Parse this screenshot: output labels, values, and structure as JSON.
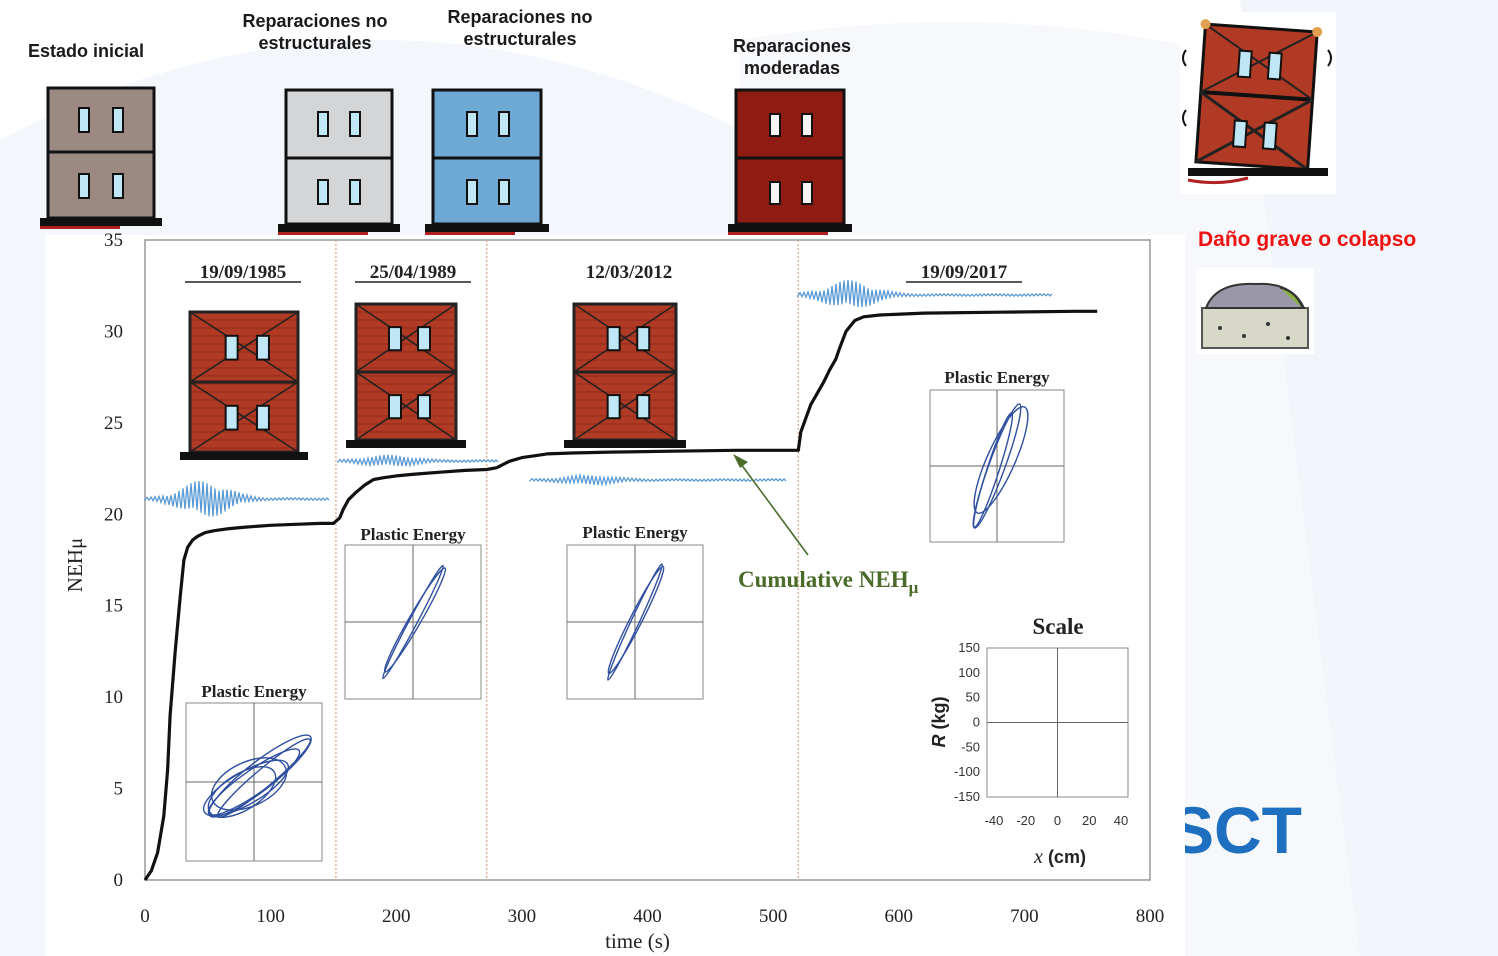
{
  "top_labels": {
    "initial": "Estado inicial",
    "nonstructural_1": "Reparaciones no estructurales",
    "nonstructural_2": "Reparaciones no estructurales",
    "moderate": "Reparaciones moderadas",
    "severe": "Daño grave o colapso"
  },
  "logo": "SCT",
  "colors": {
    "curve": "#111111",
    "accelerogram": "#5b9bd5",
    "hysteresis": "#2f4f9f",
    "divider": "#e0a080",
    "annotation": "#4a6b2a",
    "severe_label": "#ee1111",
    "logo": "#1f6fc0",
    "brick": "#b03a24",
    "building_grey": "#9c8a82",
    "building_light": "#d3d5d6",
    "building_blue": "#6ea9d6",
    "building_dark": "#8e1c12"
  },
  "icons": [
    "building-initial-icon",
    "building-nonstructural-icon",
    "building-nonstructural-blue-icon",
    "building-moderate-icon",
    "building-collapse-icon",
    "rubble-icon",
    "damaged-building-icon",
    "accelerogram-icon",
    "arrow-icon"
  ],
  "chart_data": {
    "type": "line",
    "title": "",
    "xlabel": "time (s)",
    "ylabel": "NEHμ",
    "xlim": [
      0,
      800
    ],
    "ylim": [
      0,
      35
    ],
    "xticks": [
      "0",
      "100",
      "200",
      "300",
      "400",
      "500",
      "600",
      "700",
      "800"
    ],
    "yticks": [
      "0",
      "5",
      "10",
      "15",
      "20",
      "25",
      "30",
      "35"
    ],
    "grid": false,
    "series": [
      {
        "name": "Cumulative NEHμ",
        "x": [
          0,
          5,
          10,
          15,
          18,
          20,
          24,
          28,
          31,
          34,
          38,
          42,
          48,
          55,
          65,
          80,
          100,
          120,
          140,
          150,
          155,
          158,
          162,
          168,
          175,
          182,
          190,
          200,
          215,
          235,
          255,
          272,
          280,
          290,
          300,
          310,
          320,
          340,
          370,
          420,
          470,
          520,
          522,
          530,
          540,
          545,
          550,
          553,
          558,
          565,
          572,
          585,
          620,
          680,
          740,
          758
        ],
        "y": [
          0,
          0.5,
          1.5,
          3.5,
          6,
          9,
          12.5,
          15.5,
          17.5,
          18.2,
          18.6,
          18.8,
          19.0,
          19.1,
          19.2,
          19.3,
          19.4,
          19.45,
          19.5,
          19.5,
          19.8,
          20.3,
          20.8,
          21.2,
          21.6,
          21.9,
          22.0,
          22.1,
          22.2,
          22.3,
          22.4,
          22.45,
          22.55,
          22.9,
          23.1,
          23.2,
          23.3,
          23.35,
          23.4,
          23.45,
          23.5,
          23.5,
          24.5,
          26.0,
          27.2,
          27.9,
          28.5,
          29.1,
          30.0,
          30.6,
          30.8,
          30.9,
          31.0,
          31.05,
          31.1,
          31.1
        ]
      }
    ],
    "events": [
      {
        "date": "19/09/1985",
        "x": 0
      },
      {
        "date": "25/04/1989",
        "x": 152
      },
      {
        "date": "12/03/2012",
        "x": 272
      },
      {
        "date": "19/09/2017",
        "x": 520
      }
    ],
    "annotations": {
      "cumulative": "Cumulative NEHμ",
      "cumulative_base": "Cumulative NEH",
      "cumulative_sub": "μ",
      "inset_title": "Plastic Energy",
      "scale_title": "Scale"
    },
    "scale_inset": {
      "xlabel_var": "x",
      "xlabel_unit": "(cm)",
      "ylabel_var": "R",
      "ylabel_unit": "(kg)",
      "xticks": [
        "-40",
        "-20",
        "0",
        "20",
        "40"
      ],
      "yticks": [
        "150",
        "100",
        "50",
        "0",
        "-50",
        "-100",
        "-150"
      ],
      "xlim": [
        -40,
        40
      ],
      "ylim": [
        -150,
        150
      ]
    }
  }
}
